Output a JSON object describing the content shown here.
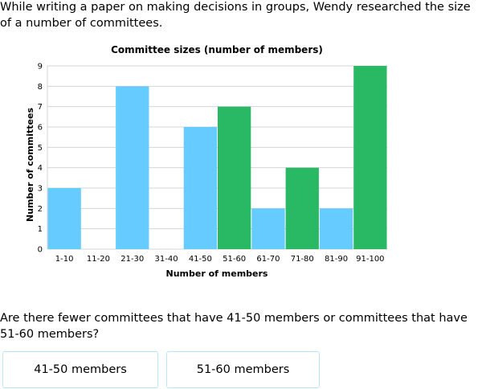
{
  "intro_text": "While writing a paper on making decisions in groups, Wendy researched the size of a number of committees.",
  "question": "Are there fewer committees that have 41-50 members or committees that have 51-60 members?",
  "choices": [
    "41-50 members",
    "51-60 members"
  ],
  "colors": {
    "blue": "#66ccff",
    "green": "#29b864",
    "grid": "#d4d4d4",
    "choice_border": "#b9e6f5"
  },
  "chart_data": {
    "type": "bar",
    "title": "Committee sizes (number of members)",
    "xlabel": "Number of members",
    "ylabel": "Number of committees",
    "categories": [
      "1-10",
      "11-20",
      "21-30",
      "31-40",
      "41-50",
      "51-60",
      "61-70",
      "71-80",
      "81-90",
      "91-100"
    ],
    "values": [
      3,
      0,
      8,
      0,
      6,
      7,
      2,
      4,
      2,
      9
    ],
    "bar_colors": [
      "blue",
      "blue",
      "blue",
      "blue",
      "blue",
      "green",
      "blue",
      "green",
      "blue",
      "green"
    ],
    "ylim": [
      0,
      9
    ],
    "yticks": [
      0,
      1,
      2,
      3,
      4,
      5,
      6,
      7,
      8,
      9
    ],
    "grid": true,
    "legend": "none"
  }
}
